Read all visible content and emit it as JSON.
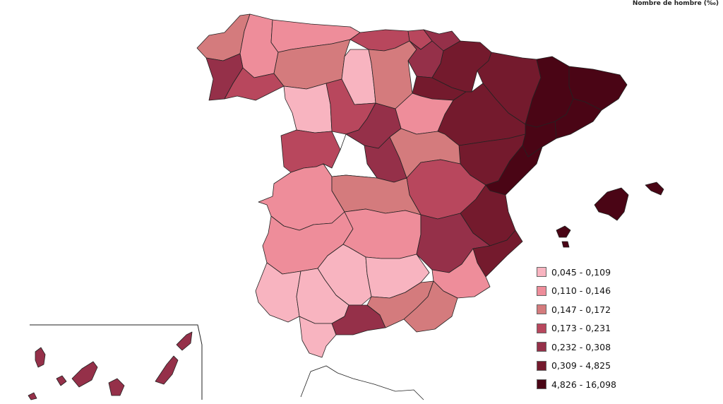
{
  "title": "Nombre de hombre (‰)",
  "legend": {
    "classes": [
      {
        "label": "0,045 - 0,109",
        "color": "#f8b4c0"
      },
      {
        "label": "0,110 - 0,146",
        "color": "#ee8d9a"
      },
      {
        "label": "0,147 - 0,172",
        "color": "#d47b7d"
      },
      {
        "label": "0,173 - 0,231",
        "color": "#b8475d"
      },
      {
        "label": "0,232 - 0,308",
        "color": "#953049"
      },
      {
        "label": "0,309 - 4,825",
        "color": "#741a2d"
      },
      {
        "label": "4,826 - 16,098",
        "color": "#4a0515"
      }
    ]
  },
  "provinces": [
    {
      "name": "A Coruña",
      "class": 2
    },
    {
      "name": "Lugo",
      "class": 1
    },
    {
      "name": "Asturias",
      "class": 1
    },
    {
      "name": "Cantabria",
      "class": 3
    },
    {
      "name": "Bizkaia",
      "class": 3
    },
    {
      "name": "Gipuzkoa",
      "class": 4
    },
    {
      "name": "Pontevedra",
      "class": 4
    },
    {
      "name": "Ourense",
      "class": 3
    },
    {
      "name": "León",
      "class": 2
    },
    {
      "name": "Palencia",
      "class": 0
    },
    {
      "name": "Burgos",
      "class": 2
    },
    {
      "name": "Álava",
      "class": 4
    },
    {
      "name": "La Rioja",
      "class": 5
    },
    {
      "name": "Navarra",
      "class": 5
    },
    {
      "name": "Huesca",
      "class": 5
    },
    {
      "name": "Lleida",
      "class": 6
    },
    {
      "name": "Girona",
      "class": 6
    },
    {
      "name": "Barcelona",
      "class": 6
    },
    {
      "name": "Tarragona",
      "class": 6
    },
    {
      "name": "Zamora",
      "class": 0
    },
    {
      "name": "Valladolid",
      "class": 3
    },
    {
      "name": "Soria",
      "class": 1
    },
    {
      "name": "Zaragoza",
      "class": 5
    },
    {
      "name": "Teruel",
      "class": 5
    },
    {
      "name": "Castellón",
      "class": 6
    },
    {
      "name": "Salamanca",
      "class": 3
    },
    {
      "name": "Segovia",
      "class": 4
    },
    {
      "name": "Ávila",
      "class": 4
    },
    {
      "name": "Guadalajara",
      "class": 2
    },
    {
      "name": "Cuenca",
      "class": 3
    },
    {
      "name": "Valencia",
      "class": 5
    },
    {
      "name": "Cáceres",
      "class": 1
    },
    {
      "name": "Toledo",
      "class": 2
    },
    {
      "name": "Badajoz",
      "class": 1
    },
    {
      "name": "Ciudad Real",
      "class": 1
    },
    {
      "name": "Albacete",
      "class": 4
    },
    {
      "name": "Alicante",
      "class": 5
    },
    {
      "name": "Córdoba",
      "class": 0
    },
    {
      "name": "Jaén",
      "class": 0
    },
    {
      "name": "Murcia",
      "class": 1
    },
    {
      "name": "Huelva",
      "class": 0
    },
    {
      "name": "Sevilla",
      "class": 0
    },
    {
      "name": "Granada",
      "class": 2
    },
    {
      "name": "Almería",
      "class": 2
    },
    {
      "name": "Cádiz",
      "class": 0
    },
    {
      "name": "Málaga",
      "class": 4
    },
    {
      "name": "Baleares",
      "class": 6
    },
    {
      "name": "Canarias",
      "class": 4
    },
    {
      "name": "Madrid",
      "class": null
    }
  ]
}
